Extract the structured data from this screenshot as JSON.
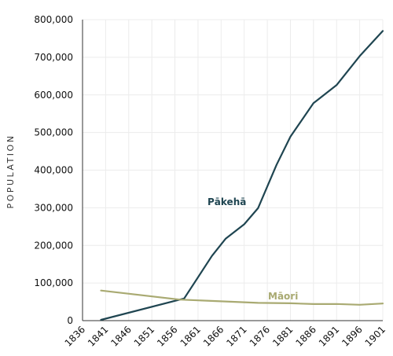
{
  "chart_data": {
    "type": "line",
    "ylabel": "POPULATION",
    "xlabel": "",
    "x_ticks": [
      "1836",
      "1841",
      "1846",
      "1851",
      "1856",
      "1861",
      "1866",
      "1871",
      "1876",
      "1881",
      "1886",
      "1891",
      "1896",
      "1901"
    ],
    "y_ticks": [
      "0",
      "100,000",
      "200,000",
      "300,000",
      "400,000",
      "500,000",
      "600,000",
      "700,000",
      "800,000"
    ],
    "xlim": [
      1836,
      1901
    ],
    "ylim": [
      0,
      800000
    ],
    "grid": true,
    "series": [
      {
        "name": "Pākehā",
        "color": "#1f4551",
        "x": [
          1840,
          1858,
          1864,
          1867,
          1871,
          1874,
          1878,
          1881,
          1886,
          1891,
          1896,
          1901
        ],
        "y": [
          2000,
          59000,
          172000,
          218000,
          256000,
          299000,
          414000,
          489000,
          578000,
          626000,
          703000,
          770000
        ]
      },
      {
        "name": "Māori",
        "color": "#a9aa72",
        "x": [
          1840,
          1857,
          1874,
          1881,
          1886,
          1891,
          1896,
          1901
        ],
        "y": [
          80000,
          56000,
          47300,
          46100,
          44000,
          44200,
          42100,
          45500
        ]
      }
    ]
  }
}
